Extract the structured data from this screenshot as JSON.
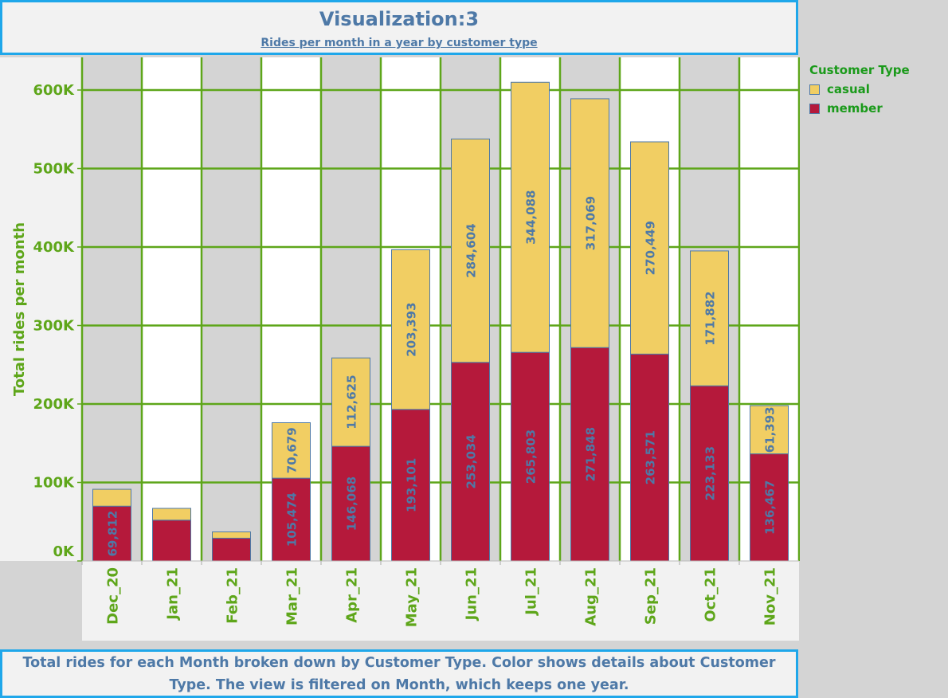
{
  "title": "Visualization:3",
  "subtitle": "Rides per month in a year by customer type",
  "caption": "Total rides for each Month broken down by Customer Type.  Color shows details about Customer Type. The view is filtered on Month, which keeps one year.",
  "legend": {
    "title": "Customer Type",
    "items": [
      {
        "label": "casual",
        "color": "#f1ce63"
      },
      {
        "label": "member",
        "color": "#b5193b"
      }
    ]
  },
  "colors": {
    "grid": "#5ea61a",
    "axis_text": "#5ea61a",
    "value_label": "#4e79a7",
    "bar_outline": "#4e79a7",
    "band_a": "#d4d4d4",
    "band_b": "#ffffff",
    "axis_area": "#f2f2f2"
  },
  "chart_data": {
    "type": "bar",
    "stacked": true,
    "ylabel": "Total rides per month",
    "xlabel": "",
    "ylim": [
      0,
      640000
    ],
    "yticks": [
      0,
      100000,
      200000,
      300000,
      400000,
      500000,
      600000
    ],
    "ytick_labels": [
      "0K",
      "100K",
      "200K",
      "300K",
      "400K",
      "500K",
      "600K"
    ],
    "grid": true,
    "legend_position": "top-right",
    "categories": [
      "Dec_20",
      "Jan_21",
      "Feb_21",
      "Mar_21",
      "Apr_21",
      "May_21",
      "Jun_21",
      "Jul_21",
      "Aug_21",
      "Sep_21",
      "Oct_21",
      "Nov_21"
    ],
    "series": [
      {
        "name": "member",
        "values": [
          69812,
          52000,
          29000,
          105474,
          146068,
          193101,
          253034,
          265803,
          271848,
          263571,
          223133,
          136467
        ],
        "labels": [
          "69,812",
          "",
          "",
          "105,474",
          "146,068",
          "193,101",
          "253,034",
          "265,803",
          "271,848",
          "263,571",
          "223,133",
          "136,467"
        ]
      },
      {
        "name": "casual",
        "values": [
          21500,
          15000,
          8000,
          70679,
          112625,
          203393,
          284604,
          344088,
          317069,
          270449,
          171882,
          61393
        ],
        "labels": [
          "",
          "",
          "",
          "70,679",
          "112,625",
          "203,393",
          "284,604",
          "344,088",
          "317,069",
          "270,449",
          "171,882",
          "61,393"
        ]
      }
    ]
  }
}
